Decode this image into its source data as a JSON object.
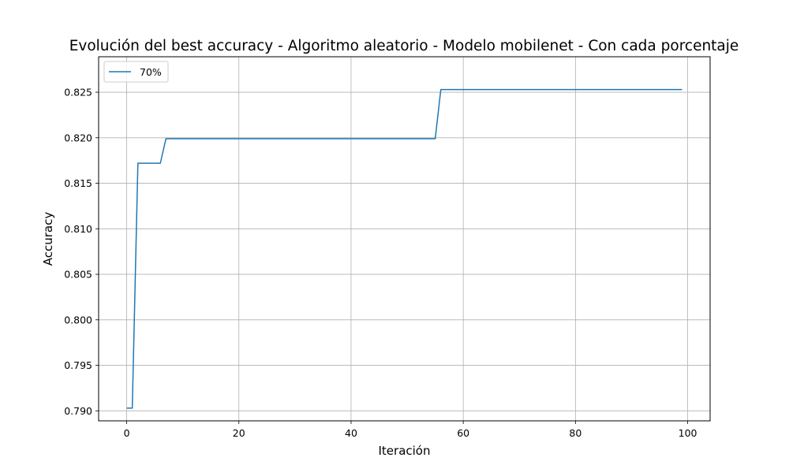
{
  "chart_data": {
    "type": "line",
    "title": "Evolución del best accuracy - Algoritmo aleatorio - Modelo mobilenet - Con cada porcentaje",
    "xlabel": "Iteración",
    "ylabel": "Accuracy",
    "xlim": [
      -5,
      104
    ],
    "ylim": [
      0.7889,
      0.8289
    ],
    "xticks": [
      0,
      20,
      40,
      60,
      80,
      100
    ],
    "yticks": [
      0.79,
      0.795,
      0.8,
      0.805,
      0.81,
      0.815,
      0.82,
      0.825
    ],
    "xtick_labels": [
      "0",
      "20",
      "40",
      "60",
      "80",
      "100"
    ],
    "ytick_labels": [
      "0.790",
      "0.795",
      "0.800",
      "0.805",
      "0.810",
      "0.815",
      "0.820",
      "0.825"
    ],
    "grid": true,
    "legend_position": "top-left",
    "series": [
      {
        "name": "70%",
        "color": "#1f77b4",
        "points": [
          [
            0,
            0.7903
          ],
          [
            1,
            0.7903
          ],
          [
            2,
            0.8172
          ],
          [
            6,
            0.8172
          ],
          [
            7,
            0.8199
          ],
          [
            55,
            0.8199
          ],
          [
            56,
            0.8253
          ],
          [
            99,
            0.8253
          ]
        ]
      }
    ]
  }
}
